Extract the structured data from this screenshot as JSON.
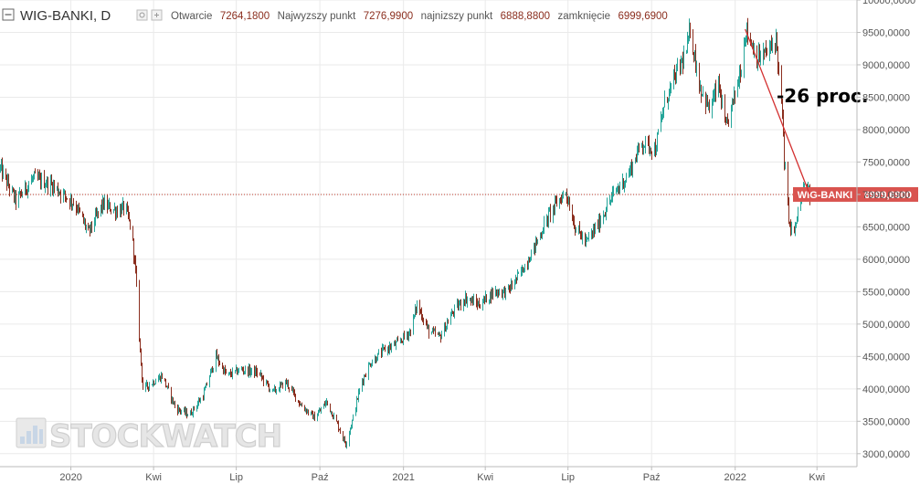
{
  "colors": {
    "up": "#26a69a",
    "down": "#8b2e1e",
    "current_line": "#c0392b",
    "annotation_line": "#d32f2f",
    "price_tag": "#d9534f",
    "grid": "#eaeaea",
    "axis": "#bbbbbb"
  },
  "legend": {
    "symbol": "WIG-BANKI, D",
    "open_label": "Otwarcie",
    "open_value": "7264,1800",
    "high_label": "Najwyzszy punkt",
    "high_value": "7276,9900",
    "low_label": "najnizszy punkt",
    "low_value": "6888,8800",
    "close_label": "zamknięcie",
    "close_value": "6999,6900",
    "icons": [
      "collapse-icon",
      "eye-icon",
      "settings-icon"
    ]
  },
  "watermark": {
    "text": "STOCKWATCH",
    "icon": "bar-chart-icon"
  },
  "chart_data": {
    "type": "candlestick",
    "series_name": "WIG-BANKI",
    "y_range": [
      2800,
      10000
    ],
    "y_ticks": [
      {
        "value": 3000,
        "label": "3000,0000"
      },
      {
        "value": 3500,
        "label": "3500,0000"
      },
      {
        "value": 4000,
        "label": "4000,0000"
      },
      {
        "value": 4500,
        "label": "4500,0000"
      },
      {
        "value": 5000,
        "label": "5000,0000"
      },
      {
        "value": 5500,
        "label": "5500,0000"
      },
      {
        "value": 6000,
        "label": "6000,0000"
      },
      {
        "value": 6500,
        "label": "6500,0000"
      },
      {
        "value": 7000,
        "label": "7000,0000"
      },
      {
        "value": 7500,
        "label": "7500,0000"
      },
      {
        "value": 8000,
        "label": "8000,0000"
      },
      {
        "value": 8500,
        "label": "8500,0000"
      },
      {
        "value": 9000,
        "label": "9000,0000"
      },
      {
        "value": 9500,
        "label": "9500,0000"
      },
      {
        "value": 10000,
        "label": "10000,0000"
      }
    ],
    "x_range": [
      "2019-10-15",
      "2022-05-15"
    ],
    "x_ticks": [
      {
        "date": "2020-01-01",
        "label": "2020"
      },
      {
        "date": "2020-04-01",
        "label": "Kwi"
      },
      {
        "date": "2020-07-01",
        "label": "Lip"
      },
      {
        "date": "2020-10-01",
        "label": "Paź"
      },
      {
        "date": "2021-01-01",
        "label": "2021"
      },
      {
        "date": "2021-04-01",
        "label": "Kwi"
      },
      {
        "date": "2021-07-01",
        "label": "Lip"
      },
      {
        "date": "2021-10-01",
        "label": "Paź"
      },
      {
        "date": "2022-01-01",
        "label": "2022"
      },
      {
        "date": "2022-04-01",
        "label": "Kwi"
      }
    ],
    "price_path": [
      [
        "2019-10-15",
        7400
      ],
      [
        "2019-11-01",
        6900
      ],
      [
        "2019-11-20",
        7250
      ],
      [
        "2019-12-10",
        7150
      ],
      [
        "2020-01-05",
        6850
      ],
      [
        "2020-01-20",
        6400
      ],
      [
        "2020-02-05",
        6850
      ],
      [
        "2020-02-20",
        6750
      ],
      [
        "2020-03-01",
        6800
      ],
      [
        "2020-03-08",
        6400
      ],
      [
        "2020-03-12",
        5800
      ],
      [
        "2020-03-16",
        4800
      ],
      [
        "2020-03-20",
        4000
      ],
      [
        "2020-04-10",
        4200
      ],
      [
        "2020-04-25",
        3700
      ],
      [
        "2020-05-10",
        3600
      ],
      [
        "2020-05-25",
        3900
      ],
      [
        "2020-06-08",
        4500
      ],
      [
        "2020-06-20",
        4200
      ],
      [
        "2020-07-05",
        4300
      ],
      [
        "2020-07-25",
        4250
      ],
      [
        "2020-08-10",
        3950
      ],
      [
        "2020-08-25",
        4100
      ],
      [
        "2020-09-10",
        3750
      ],
      [
        "2020-09-25",
        3550
      ],
      [
        "2020-10-08",
        3800
      ],
      [
        "2020-10-20",
        3450
      ],
      [
        "2020-10-29",
        3150
      ],
      [
        "2020-11-05",
        3500
      ],
      [
        "2020-11-15",
        4100
      ],
      [
        "2020-11-25",
        4400
      ],
      [
        "2020-12-10",
        4600
      ],
      [
        "2020-12-25",
        4700
      ],
      [
        "2021-01-08",
        4900
      ],
      [
        "2021-01-15",
        5300
      ],
      [
        "2021-01-28",
        4900
      ],
      [
        "2021-02-10",
        4800
      ],
      [
        "2021-02-25",
        5200
      ],
      [
        "2021-03-10",
        5400
      ],
      [
        "2021-03-25",
        5300
      ],
      [
        "2021-04-10",
        5500
      ],
      [
        "2021-04-25",
        5500
      ],
      [
        "2021-05-10",
        5800
      ],
      [
        "2021-05-25",
        6200
      ],
      [
        "2021-06-10",
        6700
      ],
      [
        "2021-06-20",
        6900
      ],
      [
        "2021-06-28",
        7050
      ],
      [
        "2021-07-08",
        6500
      ],
      [
        "2021-07-20",
        6250
      ],
      [
        "2021-08-05",
        6600
      ],
      [
        "2021-08-20",
        7000
      ],
      [
        "2021-09-05",
        7300
      ],
      [
        "2021-09-20",
        7800
      ],
      [
        "2021-10-05",
        7700
      ],
      [
        "2021-10-15",
        8400
      ],
      [
        "2021-10-29",
        8900
      ],
      [
        "2021-11-08",
        9200
      ],
      [
        "2021-11-12",
        9550
      ],
      [
        "2021-11-22",
        8700
      ],
      [
        "2021-12-03",
        8300
      ],
      [
        "2021-12-13",
        8700
      ],
      [
        "2021-12-21",
        8000
      ],
      [
        "2022-01-01",
        8600
      ],
      [
        "2022-01-07",
        9000
      ],
      [
        "2022-01-12",
        9550
      ],
      [
        "2022-01-25",
        9100
      ],
      [
        "2022-02-05",
        9200
      ],
      [
        "2022-02-15",
        9400
      ],
      [
        "2022-02-22",
        8200
      ],
      [
        "2022-02-24",
        7500
      ],
      [
        "2022-03-02",
        6500
      ],
      [
        "2022-03-07",
        6400
      ],
      [
        "2022-03-12",
        6800
      ],
      [
        "2022-03-18",
        7100
      ],
      [
        "2022-03-24",
        7000
      ]
    ],
    "current_price": {
      "value": 6999.69,
      "label": "WIG-BANKI",
      "value_label": "6999,6900"
    },
    "annotation": {
      "text": "-26 proc.",
      "from": [
        "2022-01-12",
        9550
      ],
      "to": [
        "2022-03-24",
        7000
      ]
    }
  }
}
